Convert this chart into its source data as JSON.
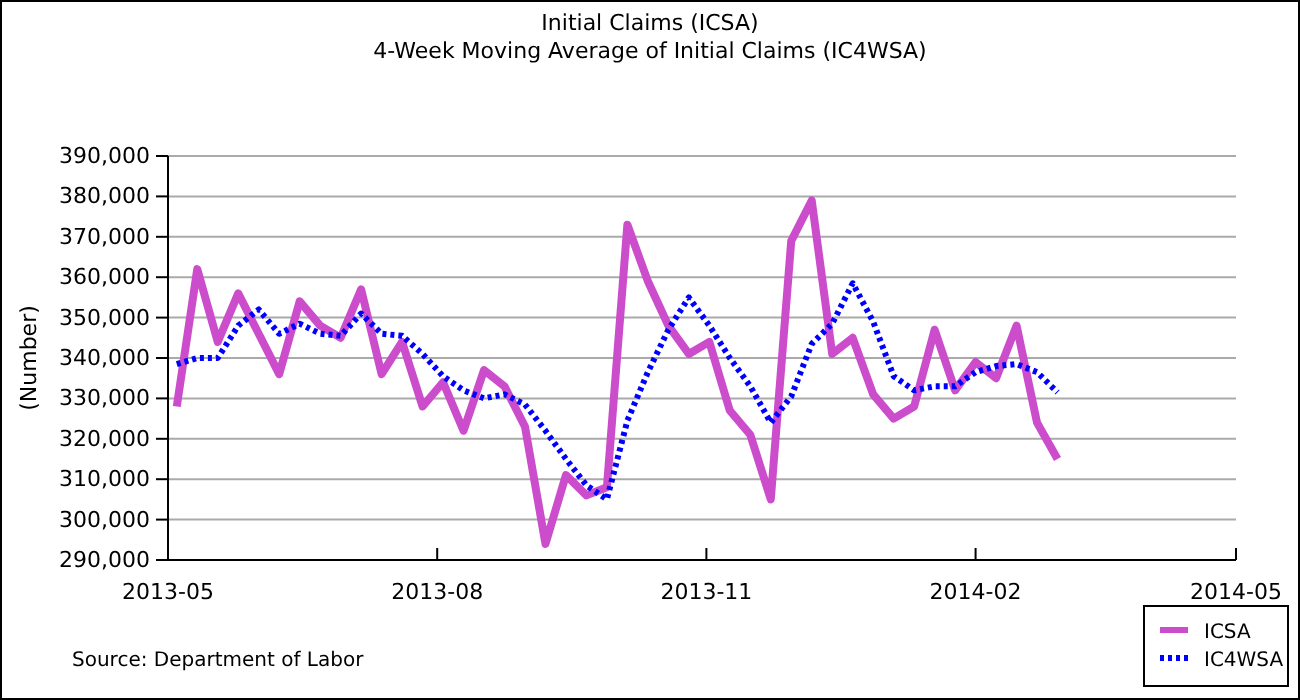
{
  "chart_data": {
    "type": "line",
    "title": "Initial Claims (ICSA)",
    "subtitle": "4-Week Moving Average of Initial Claims (IC4WSA)",
    "ylabel": "(Number)",
    "annotations": [
      "Source: Department of Labor"
    ],
    "x": [
      "2013-05-04",
      "2013-05-11",
      "2013-05-18",
      "2013-05-25",
      "2013-06-01",
      "2013-06-08",
      "2013-06-15",
      "2013-06-22",
      "2013-06-29",
      "2013-07-06",
      "2013-07-13",
      "2013-07-20",
      "2013-07-27",
      "2013-08-03",
      "2013-08-10",
      "2013-08-17",
      "2013-08-24",
      "2013-08-31",
      "2013-09-07",
      "2013-09-14",
      "2013-09-21",
      "2013-09-28",
      "2013-10-05",
      "2013-10-12",
      "2013-10-19",
      "2013-10-26",
      "2013-11-02",
      "2013-11-09",
      "2013-11-16",
      "2013-11-23",
      "2013-11-30",
      "2013-12-07",
      "2013-12-14",
      "2013-12-21",
      "2013-12-28",
      "2014-01-04",
      "2014-01-11",
      "2014-01-18",
      "2014-01-25",
      "2014-02-01",
      "2014-02-08",
      "2014-02-15",
      "2014-02-22",
      "2014-03-01"
    ],
    "series": [
      {
        "name": "ICSA",
        "color": "#cc4dcc",
        "line_style": "solid",
        "values": [
          328000,
          362000,
          344000,
          356000,
          346000,
          336000,
          354000,
          348000,
          345000,
          357000,
          336000,
          344000,
          328000,
          334000,
          322000,
          337000,
          333000,
          323000,
          294000,
          311000,
          306000,
          308000,
          373000,
          359000,
          348000,
          341000,
          344000,
          327000,
          321000,
          305000,
          369000,
          379000,
          341000,
          345000,
          331000,
          325000,
          328000,
          347000,
          332000,
          339000,
          335000,
          348000,
          324000,
          315000
        ]
      },
      {
        "name": "IC4WSA",
        "color": "#0000ff",
        "line_style": "dotted",
        "values": [
          338500,
          340000,
          340000,
          348000,
          352000,
          346000,
          348500,
          346000,
          345500,
          351000,
          346000,
          345500,
          341000,
          335500,
          332000,
          330000,
          331000,
          328500,
          322000,
          315000,
          308500,
          305000,
          324500,
          336500,
          347000,
          355000,
          348000,
          340000,
          333000,
          324000,
          330500,
          343500,
          348500,
          358500,
          349000,
          335500,
          332000,
          333000,
          333000,
          336500,
          338000,
          338500,
          336500,
          331500
        ]
      }
    ],
    "xlim": [
      "2013-05",
      "2014-05"
    ],
    "xticks": [
      "2013-05",
      "2013-08",
      "2013-11",
      "2014-02",
      "2014-05"
    ],
    "ylim": [
      290000,
      390000
    ],
    "yticks": [
      {
        "value": 290000,
        "label": "290,000"
      },
      {
        "value": 300000,
        "label": "300,000"
      },
      {
        "value": 310000,
        "label": "310,000"
      },
      {
        "value": 320000,
        "label": "320,000"
      },
      {
        "value": 330000,
        "label": "330,000"
      },
      {
        "value": 340000,
        "label": "340,000"
      },
      {
        "value": 350000,
        "label": "350,000"
      },
      {
        "value": 360000,
        "label": "360,000"
      },
      {
        "value": 370000,
        "label": "370,000"
      },
      {
        "value": 380000,
        "label": "380,000"
      },
      {
        "value": 390000,
        "label": "390,000"
      }
    ],
    "grid": "y",
    "legend": "bottom right",
    "marker": "none"
  }
}
